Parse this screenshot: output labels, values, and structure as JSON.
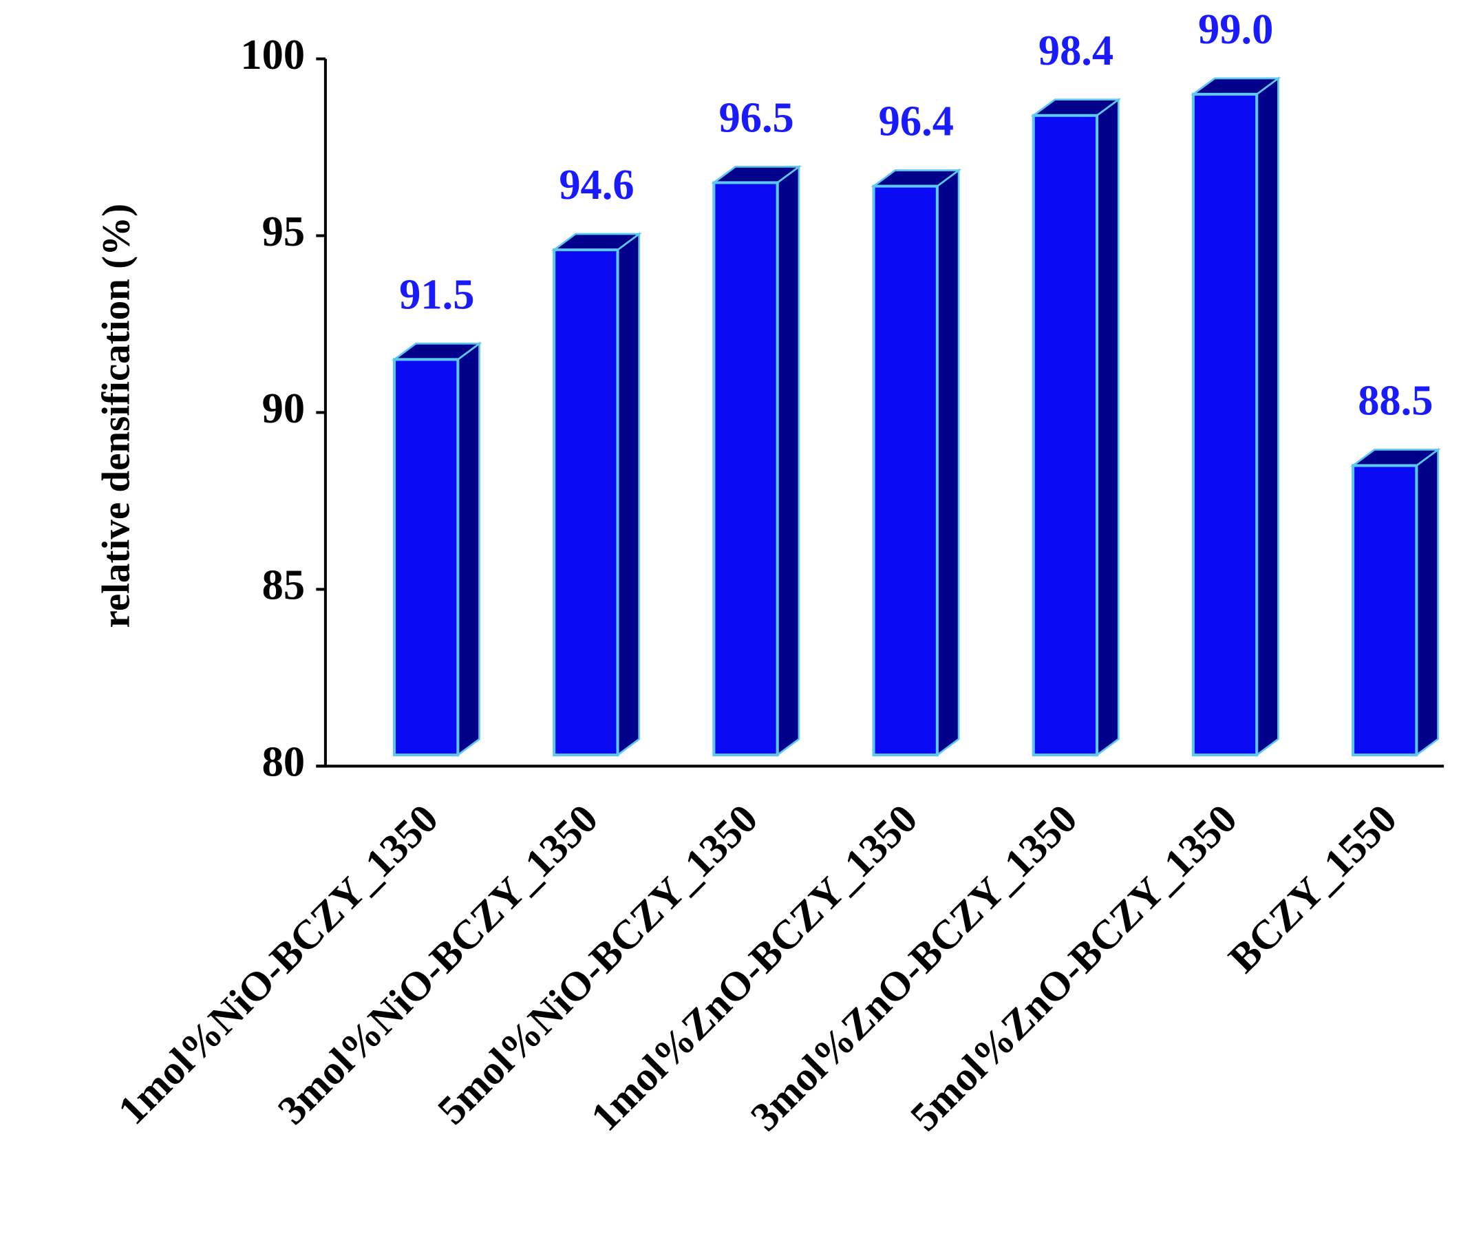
{
  "chart_data": {
    "type": "bar",
    "y_label": "relative densification (%)",
    "categories": [
      "1mol%NiO-BCZY_1350",
      "3mol%NiO-BCZY_1350",
      "5mol%NiO-BCZY_1350",
      "1mol%ZnO-BCZY_1350",
      "3mol%ZnO-BCZY_1350",
      "5mol%ZnO-BCZY_1350",
      "BCZY_1550"
    ],
    "values": [
      91.5,
      94.6,
      96.5,
      96.4,
      98.4,
      99.0,
      88.5
    ],
    "value_labels": [
      "91.5",
      "94.6",
      "96.5",
      "96.4",
      "98.4",
      "99.0",
      "88.5"
    ],
    "color": "#0a0af5",
    "side_color": "#00008b",
    "edge_color": "#5cc8f0",
    "label_color": "#1a1aff",
    "ylim": [
      80,
      100
    ],
    "yticks": [
      80,
      85,
      90,
      95,
      100
    ],
    "grid": false
  }
}
